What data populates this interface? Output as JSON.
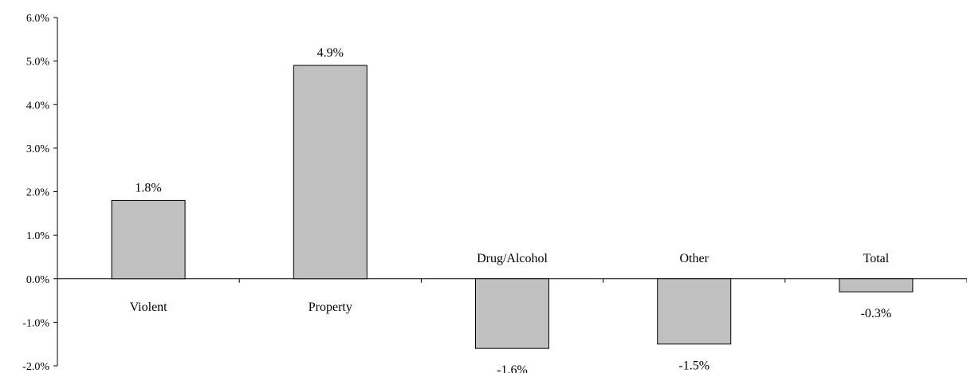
{
  "chart_data": {
    "type": "bar",
    "title": "",
    "xlabel": "",
    "ylabel": "",
    "categories": [
      "Violent",
      "Property",
      "Drug/Alcohol",
      "Other",
      "Total"
    ],
    "values": [
      1.8,
      4.9,
      -1.6,
      -1.5,
      -0.3
    ],
    "value_labels": [
      "1.8%",
      "4.9%",
      "-1.6%",
      "-1.5%",
      "-0.3%"
    ],
    "ylim": [
      -2.0,
      6.0
    ],
    "yticks": [
      6.0,
      5.0,
      4.0,
      3.0,
      2.0,
      1.0,
      0.0,
      -1.0,
      -2.0
    ],
    "ytick_labels": [
      "6.0%",
      "5.0%",
      "4.0%",
      "3.0%",
      "2.0%",
      "1.0%",
      "0.0%",
      "-1.0%",
      "-2.0%"
    ],
    "grid": false,
    "legend": "none",
    "colors": {
      "bar_fill": "#c0c0c0",
      "bar_stroke": "#000000",
      "axis": "#000000"
    }
  }
}
